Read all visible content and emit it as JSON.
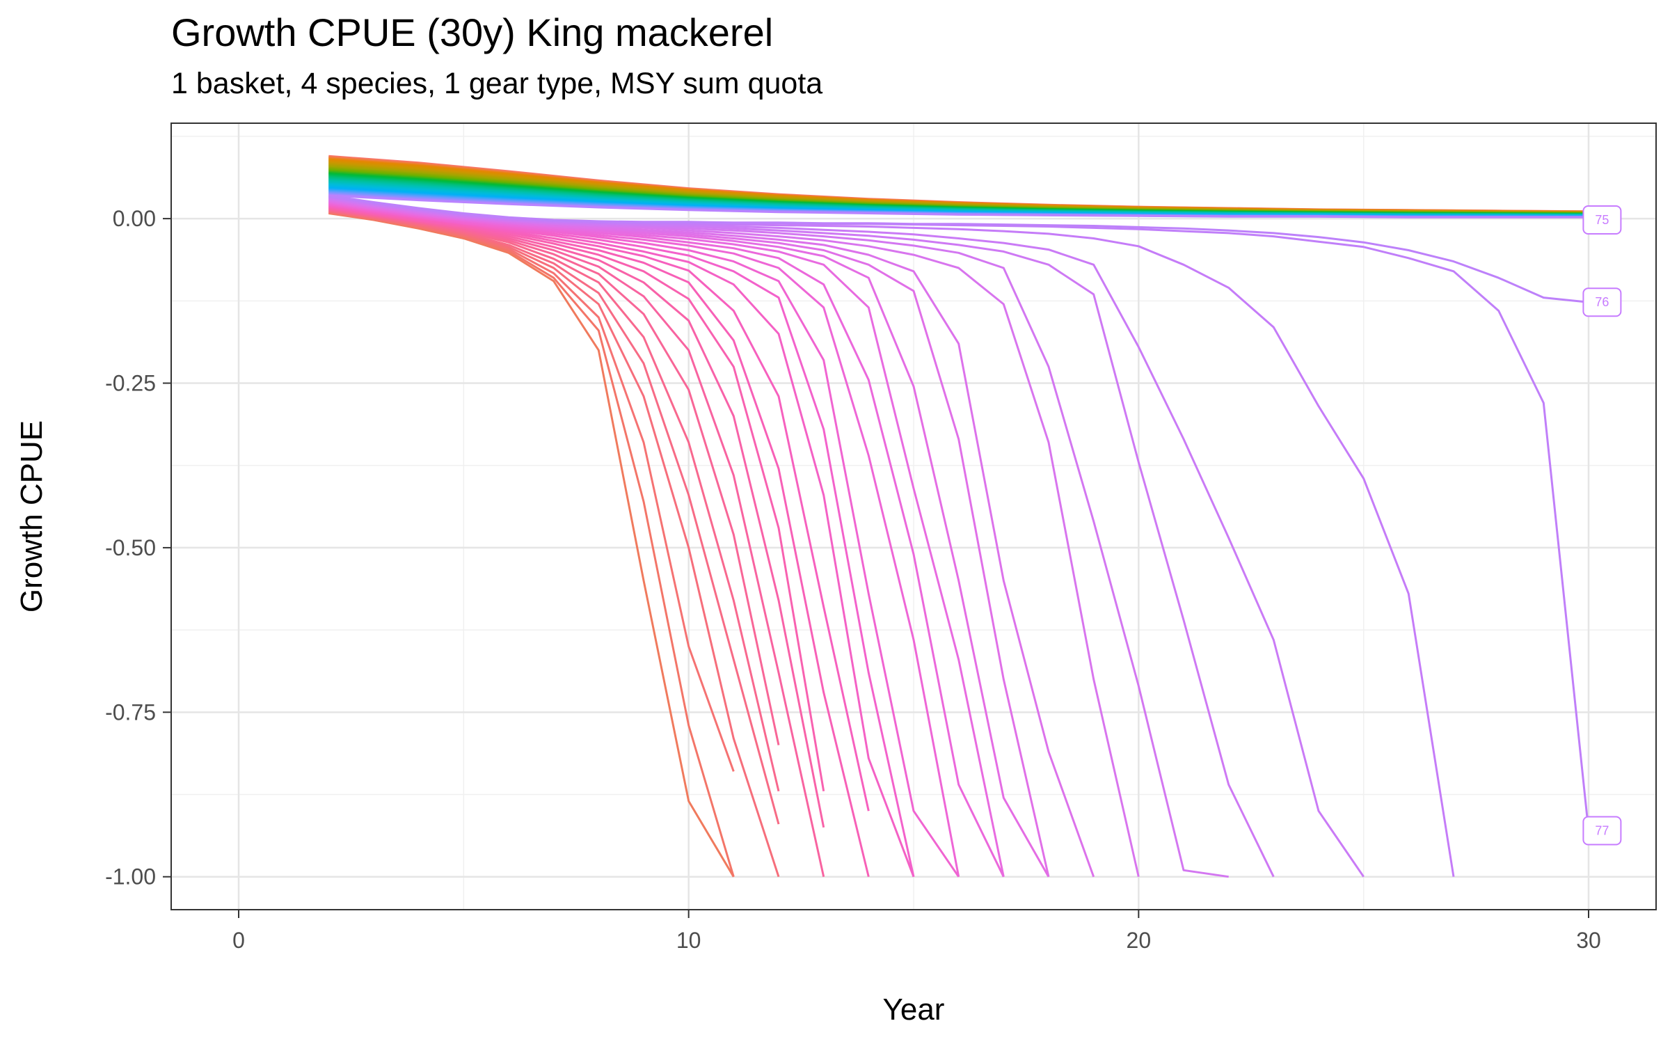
{
  "chart_data": {
    "type": "line",
    "title": "Growth CPUE (30y) King mackerel",
    "subtitle": "1 basket, 4 species, 1 gear type, MSY sum quota",
    "xlabel": "Year",
    "ylabel": "Growth CPUE",
    "xlim": [
      -1.5,
      31.5
    ],
    "ylim": [
      -1.05,
      0.145
    ],
    "x_ticks": [
      0,
      10,
      20,
      30
    ],
    "y_ticks": [
      0.0,
      -0.25,
      -0.5,
      -0.75,
      -1.0
    ],
    "x_tick_labels": [
      "0",
      "10",
      "20",
      "30"
    ],
    "y_tick_labels": [
      "0.00",
      "-0.25",
      "-0.50",
      "-0.75",
      "-1.00"
    ],
    "grid": true,
    "legend": "none",
    "end_labels": [
      {
        "text": "75",
        "x": 30.3,
        "y": -0.002,
        "color": "#c77cff"
      },
      {
        "text": "76",
        "x": 30.3,
        "y": -0.127,
        "color": "#c77cff"
      },
      {
        "text": "77",
        "x": 30.3,
        "y": -0.93,
        "color": "#c77cff"
      }
    ],
    "collapse_series": [
      {
        "x": [
          2,
          3,
          4,
          5,
          6,
          7,
          8,
          9,
          10,
          11
        ],
        "y": [
          0.008,
          -0.002,
          -0.015,
          -0.03,
          -0.052,
          -0.095,
          -0.2,
          -0.55,
          -0.885,
          -1.0
        ],
        "color": "#f07a5d"
      },
      {
        "x": [
          2,
          3,
          4,
          5,
          6,
          7,
          8,
          9,
          10,
          11
        ],
        "y": [
          0.009,
          -0.001,
          -0.013,
          -0.028,
          -0.049,
          -0.09,
          -0.17,
          -0.43,
          -0.77,
          -1.0
        ],
        "color": "#f37568"
      },
      {
        "x": [
          2,
          3,
          4,
          5,
          6,
          7,
          8,
          9,
          10,
          11
        ],
        "y": [
          0.01,
          0.0,
          -0.012,
          -0.026,
          -0.046,
          -0.083,
          -0.15,
          -0.34,
          -0.65,
          -0.84
        ],
        "color": "#f57272"
      },
      {
        "x": [
          2,
          3,
          4,
          5,
          6,
          7,
          8,
          9,
          10,
          11,
          12
        ],
        "y": [
          0.011,
          0.001,
          -0.01,
          -0.024,
          -0.043,
          -0.075,
          -0.13,
          -0.27,
          -0.5,
          -0.79,
          -1.0
        ],
        "color": "#f66e7b"
      },
      {
        "x": [
          2,
          3,
          4,
          5,
          6,
          7,
          8,
          9,
          10,
          11,
          12
        ],
        "y": [
          0.012,
          0.002,
          -0.009,
          -0.022,
          -0.04,
          -0.068,
          -0.113,
          -0.22,
          -0.42,
          -0.67,
          -0.92
        ],
        "color": "#f76b85"
      },
      {
        "x": [
          2,
          3,
          4,
          5,
          6,
          7,
          8,
          9,
          10,
          11,
          12
        ],
        "y": [
          0.013,
          0.003,
          -0.007,
          -0.02,
          -0.036,
          -0.061,
          -0.097,
          -0.18,
          -0.34,
          -0.58,
          -0.87
        ],
        "color": "#f8688e"
      },
      {
        "x": [
          2,
          3,
          4,
          5,
          6,
          7,
          8,
          9,
          10,
          11,
          12
        ],
        "y": [
          0.014,
          0.004,
          -0.006,
          -0.018,
          -0.033,
          -0.054,
          -0.084,
          -0.145,
          -0.26,
          -0.48,
          -0.8
        ],
        "color": "#f86697"
      },
      {
        "x": [
          2,
          3,
          4,
          5,
          6,
          7,
          8,
          9,
          10,
          11,
          12,
          13
        ],
        "y": [
          0.015,
          0.005,
          -0.005,
          -0.016,
          -0.03,
          -0.048,
          -0.073,
          -0.118,
          -0.2,
          -0.39,
          -0.69,
          -1.0
        ],
        "color": "#f863a0"
      },
      {
        "x": [
          2,
          3,
          4,
          5,
          6,
          7,
          8,
          9,
          10,
          11,
          12,
          13
        ],
        "y": [
          0.016,
          0.006,
          -0.004,
          -0.014,
          -0.027,
          -0.043,
          -0.063,
          -0.097,
          -0.155,
          -0.3,
          -0.58,
          -0.925
        ],
        "color": "#f862a8"
      },
      {
        "x": [
          2,
          3,
          4,
          5,
          6,
          7,
          8,
          9,
          10,
          11,
          12,
          13
        ],
        "y": [
          0.017,
          0.007,
          -0.003,
          -0.012,
          -0.024,
          -0.038,
          -0.055,
          -0.08,
          -0.122,
          -0.225,
          -0.47,
          -0.87
        ],
        "color": "#f861b0"
      },
      {
        "x": [
          2,
          3,
          4,
          5,
          6,
          7,
          8,
          9,
          10,
          11,
          12,
          13,
          14
        ],
        "y": [
          0.018,
          0.008,
          -0.002,
          -0.011,
          -0.021,
          -0.034,
          -0.048,
          -0.067,
          -0.097,
          -0.185,
          -0.38,
          -0.72,
          -1.0
        ],
        "color": "#f760b7"
      },
      {
        "x": [
          2,
          3,
          4,
          5,
          6,
          7,
          8,
          9,
          10,
          11,
          12,
          13,
          14
        ],
        "y": [
          0.019,
          0.009,
          0.0,
          -0.009,
          -0.019,
          -0.03,
          -0.042,
          -0.057,
          -0.079,
          -0.14,
          -0.27,
          -0.59,
          -0.9
        ],
        "color": "#f660be"
      },
      {
        "x": [
          2,
          3,
          4,
          5,
          6,
          7,
          8,
          9,
          10,
          11,
          12,
          13,
          14,
          15
        ],
        "y": [
          0.02,
          0.01,
          0.001,
          -0.008,
          -0.017,
          -0.026,
          -0.037,
          -0.05,
          -0.066,
          -0.1,
          -0.175,
          -0.42,
          -0.82,
          -1.0
        ],
        "color": "#f461c5"
      },
      {
        "x": [
          2,
          3,
          4,
          5,
          6,
          7,
          8,
          9,
          10,
          11,
          12,
          13,
          14,
          15
        ],
        "y": [
          0.021,
          0.011,
          0.002,
          -0.007,
          -0.015,
          -0.023,
          -0.032,
          -0.043,
          -0.056,
          -0.08,
          -0.12,
          -0.32,
          -0.69,
          -1.0
        ],
        "color": "#f362cb"
      },
      {
        "x": [
          2,
          3,
          4,
          5,
          6,
          7,
          8,
          9,
          10,
          11,
          12,
          13,
          14,
          15,
          16
        ],
        "y": [
          0.022,
          0.012,
          0.003,
          -0.006,
          -0.013,
          -0.02,
          -0.028,
          -0.037,
          -0.048,
          -0.065,
          -0.095,
          -0.215,
          -0.57,
          -0.9,
          -1.0
        ],
        "color": "#f064d1"
      },
      {
        "x": [
          2,
          3,
          4,
          5,
          6,
          7,
          8,
          9,
          10,
          11,
          12,
          13,
          14,
          15,
          16
        ],
        "y": [
          0.023,
          0.013,
          0.004,
          -0.004,
          -0.011,
          -0.018,
          -0.025,
          -0.032,
          -0.041,
          -0.053,
          -0.075,
          -0.135,
          -0.36,
          -0.64,
          -1.0
        ],
        "color": "#ee66d6"
      },
      {
        "x": [
          2,
          3,
          4,
          5,
          6,
          7,
          8,
          9,
          10,
          11,
          12,
          13,
          14,
          15,
          16,
          17
        ],
        "y": [
          0.024,
          0.014,
          0.005,
          -0.003,
          -0.01,
          -0.016,
          -0.022,
          -0.028,
          -0.036,
          -0.045,
          -0.06,
          -0.1,
          -0.245,
          -0.51,
          -0.86,
          -1.0
        ],
        "color": "#eb68db"
      },
      {
        "x": [
          2,
          3,
          4,
          5,
          6,
          7,
          8,
          9,
          10,
          11,
          12,
          13,
          14,
          15,
          16,
          17
        ],
        "y": [
          0.025,
          0.015,
          0.006,
          -0.002,
          -0.008,
          -0.014,
          -0.019,
          -0.025,
          -0.031,
          -0.039,
          -0.05,
          -0.07,
          -0.135,
          -0.41,
          -0.67,
          -1.0
        ],
        "color": "#e86be0"
      },
      {
        "x": [
          2,
          3,
          4,
          5,
          6,
          7,
          8,
          9,
          10,
          11,
          12,
          13,
          14,
          15,
          16,
          17,
          18
        ],
        "y": [
          0.026,
          0.016,
          0.007,
          -0.001,
          -0.007,
          -0.012,
          -0.017,
          -0.022,
          -0.027,
          -0.034,
          -0.043,
          -0.057,
          -0.09,
          -0.255,
          -0.55,
          -0.88,
          -1.0
        ],
        "color": "#e46de4"
      },
      {
        "x": [
          2,
          3,
          4,
          5,
          6,
          7,
          8,
          9,
          10,
          11,
          12,
          13,
          14,
          15,
          16,
          17,
          18
        ],
        "y": [
          0.027,
          0.017,
          0.008,
          0.0,
          -0.006,
          -0.011,
          -0.015,
          -0.019,
          -0.024,
          -0.03,
          -0.037,
          -0.048,
          -0.07,
          -0.11,
          -0.335,
          -0.7,
          -1.0
        ],
        "color": "#e070e8"
      },
      {
        "x": [
          2,
          3,
          4,
          5,
          6,
          7,
          8,
          9,
          10,
          11,
          12,
          13,
          14,
          15,
          16,
          17,
          18,
          19
        ],
        "y": [
          0.028,
          0.018,
          0.009,
          0.001,
          -0.005,
          -0.009,
          -0.013,
          -0.017,
          -0.021,
          -0.026,
          -0.032,
          -0.04,
          -0.055,
          -0.08,
          -0.19,
          -0.55,
          -0.81,
          -1.0
        ],
        "color": "#dc72eb"
      },
      {
        "x": [
          2,
          3,
          4,
          5,
          6,
          7,
          8,
          9,
          10,
          11,
          12,
          13,
          14,
          15,
          16,
          17,
          18,
          19,
          20
        ],
        "y": [
          0.029,
          0.019,
          0.01,
          0.002,
          -0.004,
          -0.008,
          -0.011,
          -0.014,
          -0.018,
          -0.022,
          -0.027,
          -0.033,
          -0.042,
          -0.055,
          -0.075,
          -0.13,
          -0.34,
          -0.7,
          -1.0
        ],
        "color": "#d875ee"
      },
      {
        "x": [
          2,
          3,
          4,
          5,
          6,
          7,
          8,
          9,
          10,
          11,
          12,
          13,
          14,
          15,
          16,
          17,
          18,
          19,
          20,
          21,
          22
        ],
        "y": [
          0.03,
          0.02,
          0.011,
          0.003,
          -0.003,
          -0.007,
          -0.01,
          -0.012,
          -0.015,
          -0.018,
          -0.022,
          -0.027,
          -0.033,
          -0.041,
          -0.052,
          -0.075,
          -0.225,
          -0.46,
          -0.71,
          -0.99,
          -1.0
        ],
        "color": "#d377f1"
      },
      {
        "x": [
          2,
          3,
          4,
          5,
          6,
          7,
          8,
          9,
          10,
          11,
          12,
          13,
          14,
          15,
          16,
          17,
          18,
          19,
          20,
          21,
          22,
          23
        ],
        "y": [
          0.031,
          0.021,
          0.012,
          0.004,
          -0.002,
          -0.006,
          -0.008,
          -0.01,
          -0.012,
          -0.015,
          -0.018,
          -0.022,
          -0.026,
          -0.032,
          -0.04,
          -0.05,
          -0.07,
          -0.115,
          -0.37,
          -0.61,
          -0.86,
          -1.0
        ],
        "color": "#ce79f4"
      },
      {
        "x": [
          2,
          3,
          4,
          5,
          6,
          7,
          8,
          9,
          10,
          11,
          12,
          13,
          14,
          15,
          16,
          17,
          18,
          19,
          20,
          21,
          22,
          23,
          24,
          25
        ],
        "y": [
          0.032,
          0.022,
          0.013,
          0.005,
          -0.001,
          -0.005,
          -0.007,
          -0.009,
          -0.01,
          -0.012,
          -0.014,
          -0.017,
          -0.02,
          -0.024,
          -0.03,
          -0.037,
          -0.047,
          -0.07,
          -0.195,
          -0.335,
          -0.485,
          -0.64,
          -0.9,
          -1.0
        ],
        "color": "#ca7bf6"
      },
      {
        "x": [
          2,
          3,
          4,
          5,
          6,
          7,
          8,
          9,
          10,
          11,
          12,
          13,
          14,
          15,
          16,
          17,
          18,
          19,
          20,
          21,
          22,
          23,
          24,
          25,
          26,
          27
        ],
        "y": [
          0.033,
          0.023,
          0.014,
          0.006,
          0.0,
          -0.004,
          -0.006,
          -0.007,
          -0.008,
          -0.009,
          -0.01,
          -0.011,
          -0.012,
          -0.014,
          -0.016,
          -0.019,
          -0.023,
          -0.03,
          -0.042,
          -0.07,
          -0.105,
          -0.165,
          -0.285,
          -0.395,
          -0.57,
          -1.0
        ],
        "color": "#c57cf8"
      },
      {
        "x": [
          2,
          3,
          4,
          5,
          6,
          7,
          8,
          9,
          10,
          11,
          12,
          13,
          14,
          15,
          16,
          17,
          18,
          19,
          20,
          21,
          22,
          23,
          24,
          25,
          26,
          27,
          28,
          29,
          30
        ],
        "y": [
          0.034,
          0.024,
          0.015,
          0.007,
          0.001,
          -0.003,
          -0.005,
          -0.006,
          -0.006,
          -0.007,
          -0.007,
          -0.008,
          -0.008,
          -0.009,
          -0.01,
          -0.011,
          -0.012,
          -0.014,
          -0.016,
          -0.019,
          -0.022,
          -0.027,
          -0.035,
          -0.043,
          -0.06,
          -0.08,
          -0.14,
          -0.28,
          -0.93
        ],
        "color": "#c07ff9"
      },
      {
        "x": [
          2,
          3,
          4,
          5,
          6,
          7,
          8,
          9,
          10,
          11,
          12,
          13,
          14,
          15,
          16,
          17,
          18,
          19,
          20,
          21,
          22,
          23,
          24,
          25,
          26,
          27,
          28,
          29,
          30
        ],
        "y": [
          0.035,
          0.025,
          0.016,
          0.008,
          0.002,
          -0.002,
          -0.004,
          -0.005,
          -0.005,
          -0.006,
          -0.006,
          -0.007,
          -0.007,
          -0.008,
          -0.008,
          -0.009,
          -0.01,
          -0.011,
          -0.013,
          -0.015,
          -0.018,
          -0.022,
          -0.028,
          -0.036,
          -0.048,
          -0.065,
          -0.09,
          -0.12,
          -0.127
        ],
        "color": "#bd81fa"
      }
    ],
    "stable_band": {
      "x": [
        2,
        4,
        6,
        8,
        10,
        12,
        14,
        16,
        18,
        20,
        22,
        24,
        26,
        28,
        30
      ],
      "upper": [
        0.095,
        0.085,
        0.072,
        0.058,
        0.046,
        0.037,
        0.03,
        0.025,
        0.021,
        0.018,
        0.016,
        0.014,
        0.013,
        0.012,
        0.011
      ],
      "lower": [
        0.035,
        0.028,
        0.022,
        0.017,
        0.013,
        0.01,
        0.008,
        0.006,
        0.005,
        0.004,
        0.003,
        0.003,
        0.002,
        0.002,
        0.002
      ],
      "count": 48,
      "colors": [
        "#f8766d",
        "#e58700",
        "#c99800",
        "#a3a500",
        "#6bb100",
        "#00ba38",
        "#00bf7d",
        "#00c0af",
        "#00bcd8",
        "#00b0f6",
        "#619cff",
        "#b983ff"
      ]
    }
  }
}
